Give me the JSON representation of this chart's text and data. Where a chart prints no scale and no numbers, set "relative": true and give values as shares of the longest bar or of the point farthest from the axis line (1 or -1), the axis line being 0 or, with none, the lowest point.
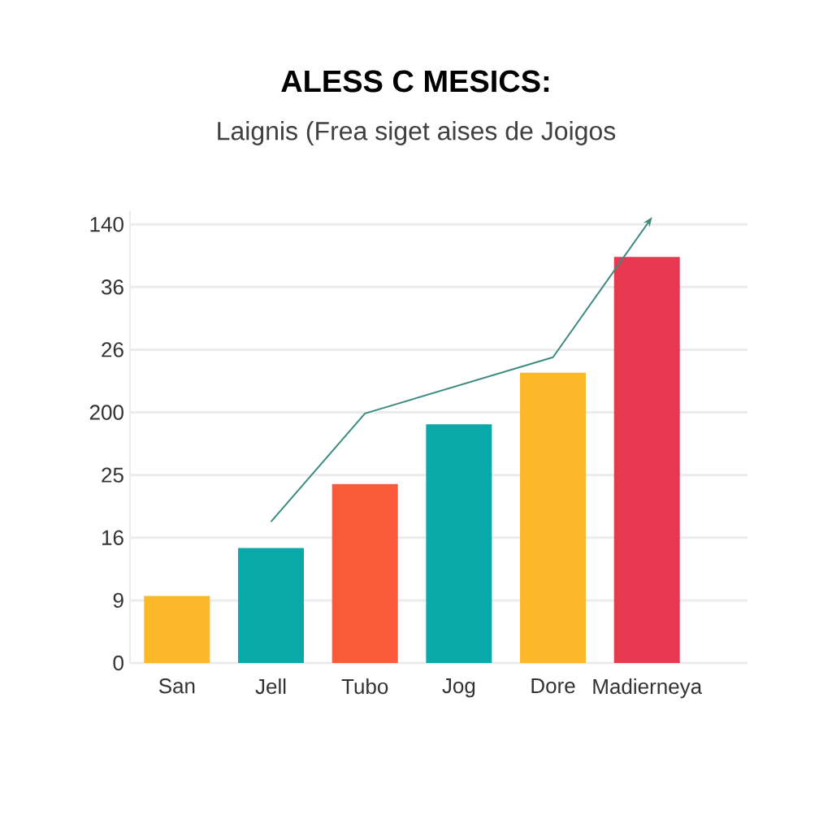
{
  "chart_data": {
    "type": "bar",
    "title": "ALESS C MESICS:",
    "subtitle": "Laignis (Frea siget aises de Joigos",
    "categories": [
      "San",
      "Jell",
      "Tubo",
      "Jog",
      "Dore",
      "Madierneya"
    ],
    "relative": true,
    "series": [
      {
        "values": [
          0.153,
          0.262,
          0.408,
          0.544,
          0.662,
          0.926
        ],
        "colors": [
          "#fbb829",
          "#0aa9a9",
          "#fa5a3a",
          "#0aa9a9",
          "#fbb829",
          "#e63950"
        ]
      },
      {
        "type": "line",
        "values": [
          null,
          0.322,
          0.569,
          null,
          0.697,
          1.0
        ],
        "color": "#3a8a80"
      }
    ],
    "annotations": [
      "0",
      "9",
      "16",
      "25",
      "200",
      "26",
      "36",
      "140"
    ],
    "grid": "y"
  }
}
